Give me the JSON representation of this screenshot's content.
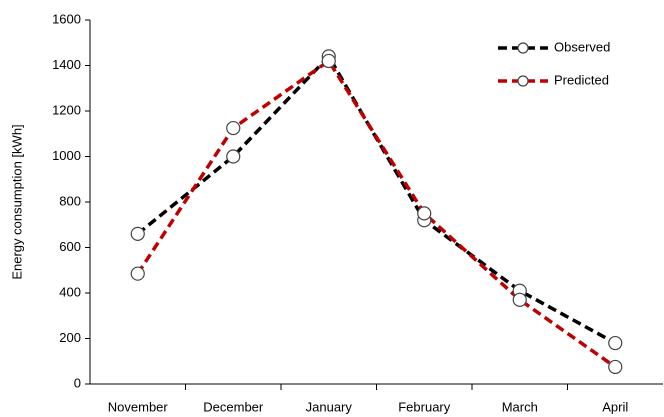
{
  "chart_data": {
    "type": "line",
    "ylabel": "Energy consumption [kWh]",
    "categories": [
      "November",
      "December",
      "January",
      "February",
      "March",
      "April"
    ],
    "series": [
      {
        "name": "Observed",
        "color": "#000000",
        "values": [
          660,
          1000,
          1440,
          720,
          410,
          180
        ]
      },
      {
        "name": "Predicted",
        "color": "#c00000",
        "values": [
          485,
          1125,
          1420,
          750,
          370,
          75
        ]
      }
    ],
    "ylim": [
      0,
      1600
    ],
    "yticks": [
      0,
      200,
      400,
      600,
      800,
      1000,
      1200,
      1400,
      1600
    ],
    "grid": false,
    "legend": "upper right"
  }
}
